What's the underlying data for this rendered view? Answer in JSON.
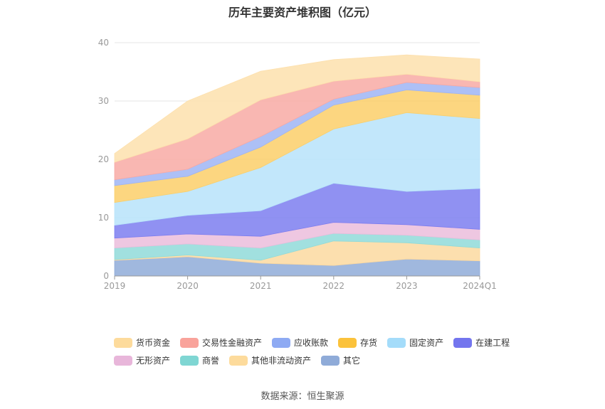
{
  "chart_data": {
    "type": "area",
    "stacked": true,
    "title": "历年主要资产堆积图（亿元）",
    "categories": [
      "2019",
      "2020",
      "2021",
      "2022",
      "2023",
      "2024Q1"
    ],
    "yticks": [
      "0",
      "10",
      "20",
      "30",
      "40"
    ],
    "ylim": [
      0,
      40
    ],
    "grid": true,
    "legend_position": "bottom",
    "series": [
      {
        "name": "其它",
        "color": "#8fabd8",
        "values": [
          2.7,
          3.3,
          2.2,
          1.8,
          2.9,
          2.6
        ]
      },
      {
        "name": "其他非流动资产",
        "color": "#fcd9a0",
        "values": [
          0.1,
          0.3,
          0.5,
          4.2,
          2.8,
          2.2
        ]
      },
      {
        "name": "商誉",
        "color": "#90dbd9",
        "values": [
          2.0,
          1.9,
          2.1,
          1.3,
          1.3,
          1.4
        ]
      },
      {
        "name": "无形资产",
        "color": "#ebbddc",
        "values": [
          1.7,
          1.7,
          2.0,
          1.9,
          1.8,
          1.8
        ]
      },
      {
        "name": "在建工程",
        "color": "#7c7ef0",
        "values": [
          2.2,
          3.2,
          4.4,
          6.7,
          5.7,
          7.0
        ]
      },
      {
        "name": "固定资产",
        "color": "#b7e3fa",
        "values": [
          3.9,
          4.1,
          7.4,
          9.3,
          13.5,
          12.0
        ]
      },
      {
        "name": "存货",
        "color": "#fbcf6a",
        "values": [
          2.9,
          2.6,
          3.5,
          4.1,
          3.9,
          4.0
        ]
      },
      {
        "name": "应收账款",
        "color": "#9fb5f4",
        "values": [
          1.0,
          1.2,
          1.8,
          1.0,
          1.3,
          1.3
        ]
      },
      {
        "name": "交易性金融资产",
        "color": "#f8aaa4",
        "values": [
          3.0,
          5.2,
          6.3,
          3.1,
          1.4,
          1.0
        ]
      },
      {
        "name": "货币资金",
        "color": "#fde0ad",
        "values": [
          1.5,
          6.5,
          4.9,
          3.7,
          3.3,
          3.9
        ]
      }
    ]
  },
  "legend_items": [
    {
      "label": "货币资金",
      "color": "#fddb9c"
    },
    {
      "label": "交易性金融资产",
      "color": "#f9a39b"
    },
    {
      "label": "应收账款",
      "color": "#8eaaf3"
    },
    {
      "label": "存货",
      "color": "#fbc23b"
    },
    {
      "label": "固定资产",
      "color": "#a4dcfa"
    },
    {
      "label": "在建工程",
      "color": "#7375ee"
    },
    {
      "label": "无形资产",
      "color": "#e8b6da"
    },
    {
      "label": "商誉",
      "color": "#7fd6d3"
    },
    {
      "label": "其他非流动资产",
      "color": "#fddb9c"
    },
    {
      "label": "其它",
      "color": "#8fabd8"
    }
  ],
  "source": "数据来源：恒生聚源"
}
